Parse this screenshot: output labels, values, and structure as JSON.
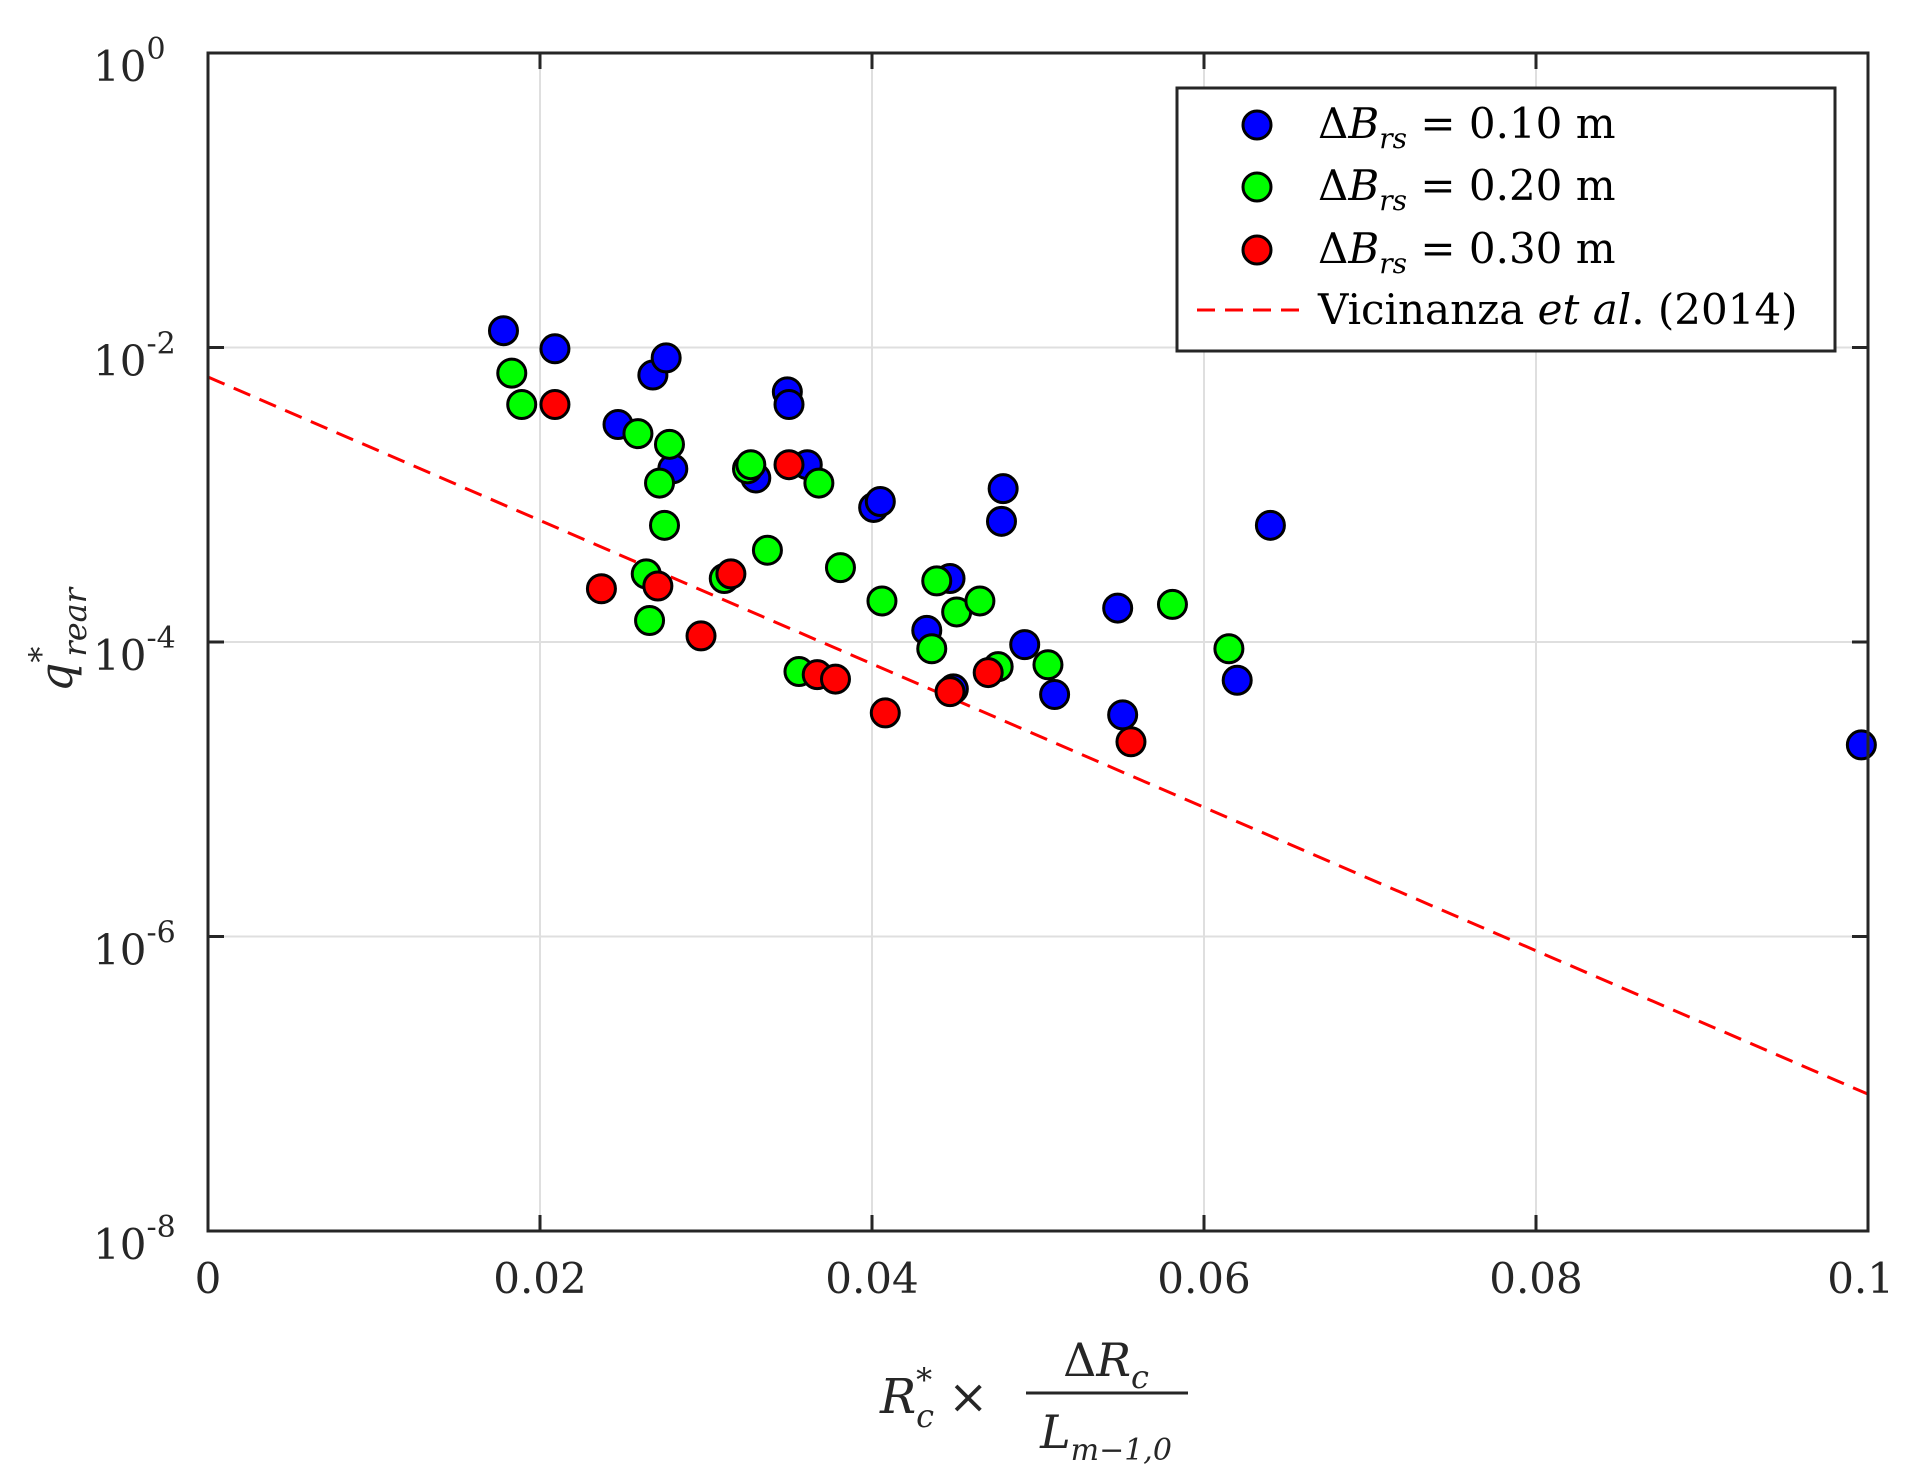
{
  "chart_data": {
    "type": "scatter",
    "title": "",
    "xlabel": {
      "lhs_base": "R",
      "lhs_sup": "*",
      "lhs_sub": "c",
      "times": "×",
      "num_delta": "Δ",
      "num_base": "R",
      "num_sub": "c",
      "den_base": "L",
      "den_sub": "m−1,0"
    },
    "ylabel": {
      "base": "q",
      "sup": "*",
      "sub": "rear"
    },
    "x_axis": {
      "lim": [
        0,
        0.1
      ],
      "ticks": [
        0,
        0.02,
        0.04,
        0.06,
        0.08,
        0.1
      ],
      "tick_labels": [
        "0",
        "0.02",
        "0.04",
        "0.06",
        "0.08",
        "0.1"
      ]
    },
    "y_axis": {
      "scale": "log",
      "lim": [
        1e-08,
        1
      ],
      "ticks": [
        1e-08,
        1e-06,
        0.0001,
        0.01,
        1
      ],
      "tick_labels": [
        {
          "base": "10",
          "exp": "-8"
        },
        {
          "base": "10",
          "exp": "-6"
        },
        {
          "base": "10",
          "exp": "-4"
        },
        {
          "base": "10",
          "exp": "-2"
        },
        {
          "base": "10",
          "exp": "0"
        }
      ]
    },
    "grid": true,
    "legend_position": "top-right",
    "series": [
      {
        "name": "ΔBrs = 0.10 m",
        "legend": {
          "delta": "Δ",
          "base": "B",
          "sub": "rs",
          "rest": " = 0.10 m"
        },
        "color": "#0000ff",
        "points": [
          [
            0.0178,
            0.013
          ],
          [
            0.0209,
            0.0098
          ],
          [
            0.0247,
            0.003
          ],
          [
            0.0268,
            0.0065
          ],
          [
            0.0276,
            0.0085
          ],
          [
            0.028,
            0.0015
          ],
          [
            0.033,
            0.0013
          ],
          [
            0.0349,
            0.005
          ],
          [
            0.035,
            0.0041
          ],
          [
            0.0361,
            0.0016
          ],
          [
            0.0401,
            0.00082
          ],
          [
            0.0405,
            0.0009
          ],
          [
            0.0433,
            0.00012
          ],
          [
            0.0447,
            0.00027
          ],
          [
            0.0449,
            4.8e-05
          ],
          [
            0.0478,
            0.00066
          ],
          [
            0.0479,
            0.0011
          ],
          [
            0.0492,
            9.6e-05
          ],
          [
            0.051,
            4.4e-05
          ],
          [
            0.0548,
            0.00017
          ],
          [
            0.0551,
            3.2e-05
          ],
          [
            0.062,
            5.5e-05
          ],
          [
            0.064,
            0.00062
          ],
          [
            0.0996,
            2e-05
          ]
        ]
      },
      {
        "name": "ΔBrs = 0.20 m",
        "legend": {
          "delta": "Δ",
          "base": "B",
          "sub": "rs",
          "rest": " = 0.20 m"
        },
        "color": "#00ff00",
        "points": [
          [
            0.0183,
            0.0067
          ],
          [
            0.0189,
            0.0041
          ],
          [
            0.0259,
            0.0026
          ],
          [
            0.0264,
            0.00029
          ],
          [
            0.0266,
            0.00014
          ],
          [
            0.0272,
            0.0012
          ],
          [
            0.0275,
            0.00062
          ],
          [
            0.0278,
            0.0022
          ],
          [
            0.0311,
            0.00027
          ],
          [
            0.0325,
            0.0015
          ],
          [
            0.0327,
            0.0016
          ],
          [
            0.0337,
            0.00042
          ],
          [
            0.0356,
            6.3e-05
          ],
          [
            0.0368,
            0.0012
          ],
          [
            0.0381,
            0.00032
          ],
          [
            0.0406,
            0.00019
          ],
          [
            0.0436,
            9e-05
          ],
          [
            0.0439,
            0.00026
          ],
          [
            0.0451,
            0.00016
          ],
          [
            0.0465,
            0.00019
          ],
          [
            0.0476,
            6.8e-05
          ],
          [
            0.0506,
            7e-05
          ],
          [
            0.0581,
            0.00018
          ],
          [
            0.0615,
            9e-05
          ]
        ]
      },
      {
        "name": "ΔBrs = 0.30 m",
        "legend": {
          "delta": "Δ",
          "base": "B",
          "sub": "rs",
          "rest": " = 0.30 m"
        },
        "color": "#ff0000",
        "points": [
          [
            0.0209,
            0.0041
          ],
          [
            0.0237,
            0.00023
          ],
          [
            0.0271,
            0.00024
          ],
          [
            0.0297,
            0.00011
          ],
          [
            0.0315,
            0.00029
          ],
          [
            0.035,
            0.0016
          ],
          [
            0.0367,
            6e-05
          ],
          [
            0.0378,
            5.6e-05
          ],
          [
            0.0408,
            3.3e-05
          ],
          [
            0.0447,
            4.6e-05
          ],
          [
            0.047,
            6.2e-05
          ],
          [
            0.0556,
            2.1e-05
          ]
        ]
      }
    ],
    "reference_line": {
      "name": "Vicinanza et al. (2014)",
      "legend": {
        "prefix": "Vicinanza ",
        "ital": "et al",
        "suffix": ". (2014)"
      },
      "color": "#ff0000",
      "style": "dashed",
      "points": [
        [
          0,
          0.0063
        ],
        [
          0.1,
          8.5e-08
        ]
      ]
    }
  }
}
